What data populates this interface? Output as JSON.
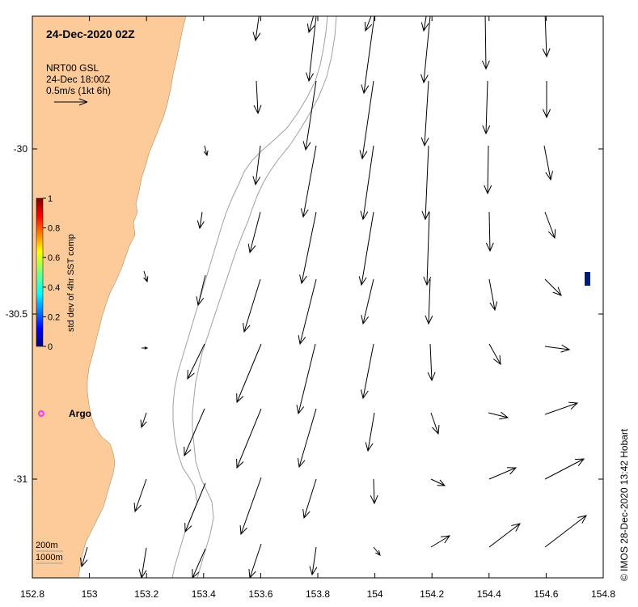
{
  "map": {
    "title": "24-Dec-2020 02Z",
    "legend": {
      "line1": "NRT00 GSL",
      "line2": "24-Dec 18:00Z",
      "line3": "0.5m/s (1kt 6h)"
    },
    "colorbar": {
      "label": "std dev of 4hr SST comp",
      "ticks": [
        "0",
        "0.2",
        "0.4",
        "0.6",
        "0.8",
        "1"
      ]
    },
    "argo_label": "Argo",
    "depth_legend": [
      "200m",
      "1000m"
    ],
    "credit": "© IMOS 28-Dec-2020 13:42 Hobart",
    "x_ticks": [
      "152.8",
      "153",
      "153.2",
      "153.4",
      "153.6",
      "153.8",
      "154",
      "154.2",
      "154.4",
      "154.6",
      "154.8"
    ],
    "y_ticks": [
      "-30",
      "-30.5",
      "-31"
    ],
    "colors": {
      "land": "#FCCB99",
      "isobath": "#a0a0a0",
      "argo": "#ff33ff",
      "marker": "#001a80"
    }
  }
}
